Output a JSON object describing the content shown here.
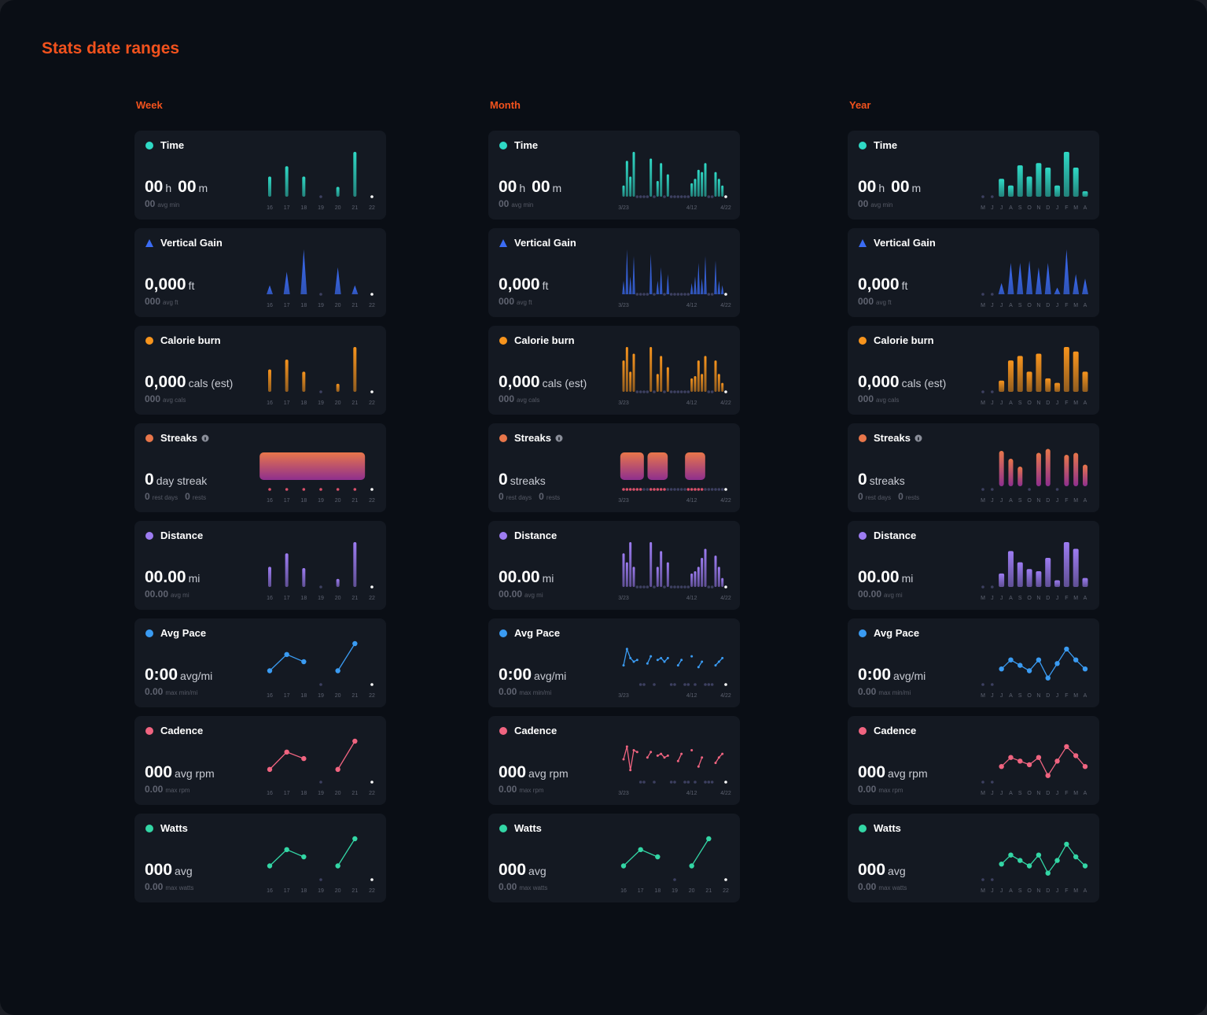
{
  "title": "Stats date ranges",
  "ylim": [
    0,
    100
  ],
  "columns": [
    {
      "title": "Week",
      "categories": [
        "16",
        "17",
        "18",
        "19",
        "20",
        "21",
        "22"
      ],
      "cards": [
        {
          "title": "Time",
          "type": "bar",
          "color": "#2fd9c5",
          "main": [
            {
              "value": "00",
              "unit": "h"
            },
            {
              "value": "00",
              "unit": "m"
            }
          ],
          "sub": [
            {
              "value": "00",
              "unit": "avg min"
            }
          ],
          "values": [
            45,
            68,
            45,
            null,
            22,
            100,
            null
          ]
        },
        {
          "title": "Vertical Gain",
          "type": "spike",
          "color": "#3b6cf5",
          "main": [
            {
              "value": "0,000",
              "unit": "ft"
            }
          ],
          "sub": [
            {
              "value": "000",
              "unit": "avg ft"
            }
          ],
          "values": [
            20,
            50,
            100,
            null,
            60,
            20,
            null
          ]
        },
        {
          "title": "Calorie burn",
          "type": "bar",
          "color": "#f7941d",
          "main": [
            {
              "value": "0,000",
              "unit": "cals (est)"
            }
          ],
          "sub": [
            {
              "value": "000",
              "unit": "avg cals"
            }
          ],
          "values": [
            50,
            72,
            45,
            null,
            18,
            100,
            null
          ]
        },
        {
          "title": "Streaks",
          "type": "streak",
          "colors": [
            "#e8764a",
            "#8e2f8e"
          ],
          "main": [
            {
              "value": "0",
              "unit": "day streak"
            }
          ],
          "sub": [
            {
              "value": "0",
              "unit": "rest days"
            },
            {
              "value": "0",
              "unit": "rests"
            }
          ],
          "values": [
            100,
            100,
            100,
            100,
            100,
            100,
            null
          ]
        },
        {
          "title": "Distance",
          "type": "bar",
          "color": "#9d7cf2",
          "main": [
            {
              "value": "00.00",
              "unit": "mi"
            }
          ],
          "sub": [
            {
              "value": "00.00",
              "unit": "avg mi"
            }
          ],
          "values": [
            45,
            75,
            42,
            null,
            18,
            100,
            null
          ]
        },
        {
          "title": "Avg Pace",
          "type": "line",
          "color": "#3a9bf2",
          "main": [
            {
              "value": "0:00",
              "unit": "avg/mi"
            }
          ],
          "sub": [
            {
              "value": "0.00",
              "unit": "max min/mi"
            }
          ],
          "values": [
            25,
            70,
            50,
            null,
            25,
            100,
            null
          ]
        },
        {
          "title": "Cadence",
          "type": "line",
          "color": "#f06480",
          "main": [
            {
              "value": "000",
              "unit": "avg rpm"
            }
          ],
          "sub": [
            {
              "value": "0.00",
              "unit": "max rpm"
            }
          ],
          "values": [
            22,
            70,
            52,
            null,
            22,
            100,
            null
          ]
        },
        {
          "title": "Watts",
          "type": "line",
          "color": "#33d6a5",
          "main": [
            {
              "value": "000",
              "unit": "avg"
            }
          ],
          "sub": [
            {
              "value": "0.00",
              "unit": "max watts"
            }
          ],
          "values": [
            25,
            70,
            50,
            null,
            25,
            100,
            null
          ]
        }
      ]
    },
    {
      "title": "Month",
      "categories": [
        "3/23",
        null,
        null,
        null,
        null,
        null,
        null,
        null,
        null,
        null,
        null,
        null,
        null,
        null,
        null,
        null,
        null,
        null,
        null,
        null,
        "4/12",
        null,
        null,
        null,
        null,
        null,
        null,
        null,
        null,
        null,
        "4/22"
      ],
      "cards": [
        {
          "title": "Time",
          "type": "bar",
          "color": "#2fd9c5",
          "main": [
            {
              "value": "00",
              "unit": "h"
            },
            {
              "value": "00",
              "unit": "m"
            }
          ],
          "sub": [
            {
              "value": "00",
              "unit": "avg min"
            }
          ],
          "values": [
            25,
            80,
            45,
            100,
            null,
            null,
            null,
            null,
            85,
            null,
            35,
            75,
            null,
            50,
            null,
            null,
            null,
            null,
            null,
            null,
            30,
            40,
            60,
            55,
            75,
            null,
            null,
            55,
            40,
            25,
            null
          ]
        },
        {
          "title": "Vertical Gain",
          "type": "spike",
          "color": "#3b6cf5",
          "main": [
            {
              "value": "0,000",
              "unit": "ft"
            }
          ],
          "sub": [
            {
              "value": "000",
              "unit": "avg ft"
            }
          ],
          "values": [
            30,
            100,
            40,
            85,
            null,
            null,
            null,
            null,
            90,
            null,
            30,
            60,
            null,
            45,
            null,
            null,
            null,
            null,
            null,
            null,
            25,
            40,
            70,
            35,
            85,
            null,
            null,
            75,
            30,
            20,
            null
          ]
        },
        {
          "title": "Calorie burn",
          "type": "bar",
          "color": "#f7941d",
          "main": [
            {
              "value": "0,000",
              "unit": "cals (est)"
            }
          ],
          "sub": [
            {
              "value": "000",
              "unit": "avg cals"
            }
          ],
          "values": [
            70,
            100,
            45,
            85,
            null,
            null,
            null,
            null,
            100,
            null,
            40,
            80,
            null,
            55,
            null,
            null,
            null,
            null,
            null,
            null,
            30,
            35,
            70,
            40,
            80,
            null,
            null,
            70,
            40,
            20,
            null
          ]
        },
        {
          "title": "Streaks",
          "type": "streak",
          "colors": [
            "#e8764a",
            "#8e2f8e"
          ],
          "main": [
            {
              "value": "0",
              "unit": "streaks"
            }
          ],
          "sub": [
            {
              "value": "0",
              "unit": "rest days"
            },
            {
              "value": "0",
              "unit": "rests"
            }
          ],
          "values": [
            100,
            100,
            100,
            100,
            100,
            100,
            null,
            null,
            100,
            100,
            100,
            100,
            100,
            null,
            null,
            null,
            null,
            null,
            null,
            100,
            100,
            100,
            100,
            100,
            null,
            null,
            null,
            null,
            null,
            null,
            null
          ]
        },
        {
          "title": "Distance",
          "type": "bar",
          "color": "#9d7cf2",
          "main": [
            {
              "value": "00.00",
              "unit": "mi"
            }
          ],
          "sub": [
            {
              "value": "00.00",
              "unit": "avg mi"
            }
          ],
          "values": [
            75,
            55,
            100,
            45,
            null,
            null,
            null,
            null,
            100,
            null,
            45,
            80,
            null,
            55,
            null,
            null,
            null,
            null,
            null,
            null,
            30,
            35,
            45,
            65,
            85,
            null,
            null,
            70,
            45,
            20,
            null
          ]
        },
        {
          "title": "Avg Pace",
          "type": "line",
          "color": "#3a9bf2",
          "main": [
            {
              "value": "0:00",
              "unit": "avg/mi"
            }
          ],
          "sub": [
            {
              "value": "0.00",
              "unit": "max min/mi"
            }
          ],
          "values": [
            40,
            85,
            60,
            50,
            55,
            null,
            null,
            45,
            65,
            null,
            55,
            60,
            50,
            60,
            null,
            null,
            40,
            55,
            null,
            null,
            65,
            null,
            35,
            50,
            null,
            null,
            null,
            40,
            50,
            60,
            null
          ]
        },
        {
          "title": "Cadence",
          "type": "line",
          "color": "#f06480",
          "main": [
            {
              "value": "000",
              "unit": "avg rpm"
            }
          ],
          "sub": [
            {
              "value": "0.00",
              "unit": "max rpm"
            }
          ],
          "values": [
            50,
            85,
            20,
            75,
            70,
            null,
            null,
            55,
            70,
            null,
            60,
            65,
            55,
            60,
            null,
            null,
            45,
            65,
            null,
            null,
            75,
            null,
            30,
            55,
            null,
            null,
            null,
            40,
            55,
            65,
            null
          ]
        },
        {
          "title": "Watts",
          "type": "line",
          "color": "#33d6a5",
          "main": [
            {
              "value": "000",
              "unit": "avg"
            }
          ],
          "sub": [
            {
              "value": "0.00",
              "unit": "max watts"
            }
          ],
          "categories": [
            "16",
            "17",
            "18",
            "19",
            "20",
            "21",
            "22"
          ],
          "values": [
            25,
            70,
            50,
            null,
            25,
            100,
            null
          ]
        }
      ]
    },
    {
      "title": "Year",
      "categories": [
        "M",
        "J",
        "J",
        "A",
        "S",
        "O",
        "N",
        "D",
        "J",
        "F",
        "M",
        "A"
      ],
      "cards": [
        {
          "title": "Time",
          "type": "bar",
          "color": "#2fd9c5",
          "main": [
            {
              "value": "00",
              "unit": "h"
            },
            {
              "value": "00",
              "unit": "m"
            }
          ],
          "sub": [
            {
              "value": "00",
              "unit": "avg min"
            }
          ],
          "values": [
            null,
            null,
            40,
            25,
            70,
            45,
            75,
            65,
            25,
            100,
            65,
            12
          ]
        },
        {
          "title": "Vertical Gain",
          "type": "spike",
          "color": "#3b6cf5",
          "main": [
            {
              "value": "0,000",
              "unit": "ft"
            }
          ],
          "sub": [
            {
              "value": "000",
              "unit": "avg ft"
            }
          ],
          "values": [
            null,
            null,
            25,
            70,
            70,
            75,
            60,
            70,
            15,
            100,
            45,
            35
          ]
        },
        {
          "title": "Calorie burn",
          "type": "bar",
          "color": "#f7941d",
          "main": [
            {
              "value": "0,000",
              "unit": "cals (est)"
            }
          ],
          "sub": [
            {
              "value": "000",
              "unit": "avg cals"
            }
          ],
          "values": [
            null,
            null,
            25,
            70,
            80,
            45,
            85,
            30,
            20,
            100,
            90,
            45
          ]
        },
        {
          "title": "Streaks",
          "type": "pill",
          "colors": [
            "#e8764a",
            "#8e2f8e"
          ],
          "main": [
            {
              "value": "0",
              "unit": "streaks"
            }
          ],
          "sub": [
            {
              "value": "0",
              "unit": "rest days"
            },
            {
              "value": "0",
              "unit": "rests"
            }
          ],
          "values": [
            null,
            null,
            90,
            70,
            50,
            null,
            85,
            95,
            null,
            80,
            85,
            55
          ]
        },
        {
          "title": "Distance",
          "type": "bar",
          "color": "#9d7cf2",
          "main": [
            {
              "value": "00.00",
              "unit": "mi"
            }
          ],
          "sub": [
            {
              "value": "00.00",
              "unit": "avg mi"
            }
          ],
          "values": [
            null,
            null,
            30,
            80,
            55,
            40,
            35,
            65,
            15,
            100,
            85,
            20
          ]
        },
        {
          "title": "Avg Pace",
          "type": "line",
          "color": "#3a9bf2",
          "main": [
            {
              "value": "0:00",
              "unit": "avg/mi"
            }
          ],
          "sub": [
            {
              "value": "0.00",
              "unit": "max min/mi"
            }
          ],
          "values": [
            null,
            null,
            30,
            55,
            40,
            25,
            55,
            5,
            45,
            85,
            55,
            30
          ]
        },
        {
          "title": "Cadence",
          "type": "line",
          "color": "#f06480",
          "main": [
            {
              "value": "000",
              "unit": "avg rpm"
            }
          ],
          "sub": [
            {
              "value": "0.00",
              "unit": "max rpm"
            }
          ],
          "values": [
            null,
            null,
            30,
            55,
            45,
            35,
            55,
            5,
            45,
            85,
            60,
            30
          ]
        },
        {
          "title": "Watts",
          "type": "line",
          "color": "#33d6a5",
          "main": [
            {
              "value": "000",
              "unit": "avg"
            }
          ],
          "sub": [
            {
              "value": "0.00",
              "unit": "max watts"
            }
          ],
          "values": [
            null,
            null,
            30,
            55,
            40,
            25,
            55,
            5,
            40,
            85,
            50,
            25
          ]
        }
      ]
    }
  ]
}
